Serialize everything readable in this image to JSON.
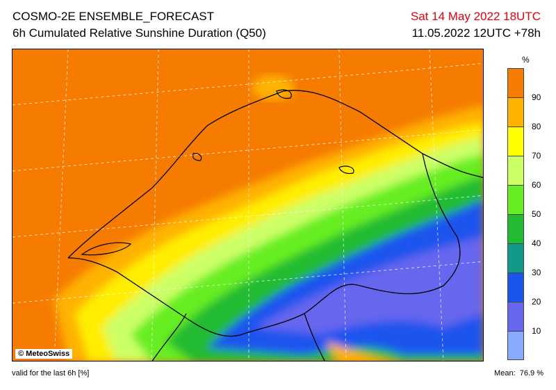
{
  "header": {
    "title": "COSMO-2E ENSEMBLE_FORECAST",
    "subtitle": "6h Cumulated Relative Sunshine Duration (Q50)",
    "valid_time": "Sat 14 May 2022 18UTC",
    "run_info": "11.05.2022 12UTC +78h"
  },
  "map": {
    "credit": "© MeteoSwiss"
  },
  "legend": {
    "unit": "%",
    "colors": [
      "#f57c00",
      "#ffb300",
      "#ffff00",
      "#ccff66",
      "#66ee22",
      "#22bb33",
      "#11998a",
      "#1a55ee",
      "#6666ee",
      "#88aaff"
    ],
    "ticks": [
      "90",
      "80",
      "70",
      "60",
      "50",
      "40",
      "30",
      "20",
      "10"
    ]
  },
  "footer": {
    "validity": "valid for the last 6h [%]",
    "mean_label": "Mean:",
    "mean_value": "76.9 %"
  }
}
